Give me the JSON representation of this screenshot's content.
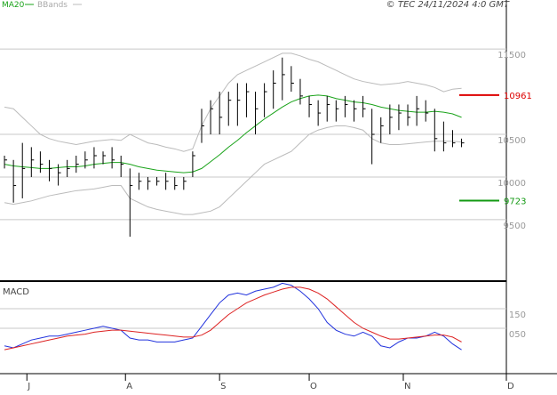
{
  "chart_data": [
    {
      "type": "ohlc",
      "footer": "© TEC 24/11/2024 4:0 GMT",
      "x": [
        0,
        2,
        4,
        6,
        8,
        10,
        12,
        14,
        16,
        18,
        20,
        22,
        24,
        26,
        28,
        30,
        32,
        34,
        36,
        38,
        40,
        42,
        44,
        46,
        48,
        50,
        52,
        54,
        56,
        58,
        60,
        62,
        64,
        66,
        68,
        70,
        72,
        74,
        76,
        78,
        80,
        82,
        84,
        86,
        88,
        90,
        92,
        94,
        96,
        98,
        100,
        102
      ],
      "high": [
        10250,
        10200,
        10400,
        10350,
        10300,
        10200,
        10150,
        10200,
        10250,
        10300,
        10350,
        10300,
        10350,
        10250,
        10100,
        10050,
        10000,
        10000,
        10050,
        10000,
        10000,
        10300,
        10800,
        10900,
        11000,
        11000,
        11100,
        11100,
        11000,
        11100,
        11250,
        11400,
        11300,
        11150,
        10950,
        10900,
        10950,
        10900,
        10950,
        10900,
        10950,
        10800,
        10700,
        10850,
        10850,
        10850,
        10950,
        10900,
        10800,
        10650,
        10550,
        10450
      ],
      "low": [
        10100,
        9700,
        9750,
        10000,
        10050,
        9950,
        9900,
        10000,
        10050,
        10100,
        10100,
        10150,
        10100,
        10000,
        9300,
        9850,
        9850,
        9900,
        9850,
        9850,
        9850,
        10000,
        10400,
        10500,
        10500,
        10600,
        10600,
        10700,
        10500,
        10700,
        10800,
        10900,
        11000,
        10850,
        10700,
        10600,
        10650,
        10650,
        10700,
        10650,
        10700,
        10150,
        10400,
        10500,
        10550,
        10600,
        10600,
        10650,
        10300,
        10300,
        10350,
        10350
      ],
      "close": [
        10200,
        9900,
        10100,
        10200,
        10150,
        10100,
        10050,
        10100,
        10150,
        10200,
        10250,
        10250,
        10200,
        10150,
        9900,
        9950,
        9950,
        9950,
        9950,
        9900,
        9950,
        10250,
        10600,
        10800,
        10700,
        10900,
        10900,
        11000,
        10800,
        11000,
        11100,
        11200,
        11100,
        10950,
        10850,
        10750,
        10850,
        10800,
        10850,
        10800,
        10800,
        10500,
        10600,
        10700,
        10750,
        10700,
        10800,
        10750,
        10450,
        10400,
        10400,
        10400
      ],
      "bar_color": "#000000",
      "series": [
        {
          "name": "MA20",
          "color": "#1aa31a",
          "values": [
            10150,
            10130,
            10120,
            10110,
            10100,
            10100,
            10110,
            10120,
            10120,
            10130,
            10150,
            10160,
            10170,
            10170,
            10150,
            10120,
            10100,
            10080,
            10070,
            10060,
            10050,
            10060,
            10100,
            10180,
            10260,
            10350,
            10430,
            10520,
            10600,
            10680,
            10750,
            10820,
            10880,
            10920,
            10950,
            10960,
            10950,
            10920,
            10900,
            10880,
            10870,
            10850,
            10820,
            10800,
            10780,
            10770,
            10760,
            10760,
            10770,
            10760,
            10740,
            10700
          ]
        },
        {
          "name": "BBands",
          "color": "#bbbbbb",
          "values": [
            10820,
            10800,
            10700,
            10600,
            10500,
            10450,
            10420,
            10400,
            10380,
            10400,
            10420,
            10430,
            10440,
            10430,
            10500,
            10450,
            10400,
            10380,
            10350,
            10330,
            10300,
            10330,
            10600,
            10800,
            10950,
            11100,
            11200,
            11250,
            11300,
            11350,
            11400,
            11450,
            11450,
            11420,
            11380,
            11350,
            11300,
            11250,
            11200,
            11150,
            11120,
            11100,
            11080,
            11090,
            11100,
            11120,
            11100,
            11080,
            11050,
            11000,
            11030,
            11040
          ],
          "lower": [
            9700,
            9680,
            9700,
            9720,
            9750,
            9780,
            9800,
            9820,
            9840,
            9850,
            9860,
            9880,
            9900,
            9900,
            9750,
            9700,
            9650,
            9620,
            9600,
            9580,
            9560,
            9560,
            9580,
            9600,
            9650,
            9750,
            9850,
            9950,
            10050,
            10150,
            10200,
            10250,
            10300,
            10400,
            10500,
            10550,
            10580,
            10600,
            10600,
            10580,
            10550,
            10450,
            10400,
            10380,
            10380,
            10390,
            10400,
            10410,
            10420,
            10420,
            10420,
            10410
          ]
        }
      ],
      "levels": [
        {
          "value": 10961,
          "color": "#dd0000"
        },
        {
          "value": 9723,
          "color": "#129912"
        }
      ],
      "xlim": [
        -1,
        112
      ],
      "ylim": [
        8790,
        12075
      ],
      "yticks": [
        9500,
        10000,
        10500,
        11500
      ],
      "grid": true
    },
    {
      "type": "line",
      "title": "MACD",
      "x": [
        0,
        2,
        4,
        6,
        8,
        10,
        12,
        14,
        16,
        18,
        20,
        22,
        24,
        26,
        28,
        30,
        32,
        34,
        36,
        38,
        40,
        42,
        44,
        46,
        48,
        50,
        52,
        54,
        56,
        58,
        60,
        62,
        64,
        66,
        68,
        70,
        72,
        74,
        76,
        78,
        80,
        82,
        84,
        86,
        88,
        90,
        92,
        94,
        96,
        98,
        100,
        102
      ],
      "series": [
        {
          "color": "#2233dd",
          "values": [
            -40,
            -50,
            -30,
            -10,
            0,
            10,
            10,
            20,
            30,
            40,
            50,
            60,
            50,
            40,
            0,
            -10,
            -10,
            -20,
            -20,
            -20,
            -10,
            0,
            60,
            120,
            180,
            220,
            230,
            220,
            240,
            250,
            260,
            280,
            270,
            240,
            200,
            150,
            80,
            40,
            20,
            10,
            30,
            10,
            -40,
            -50,
            -20,
            0,
            0,
            10,
            30,
            10,
            -30,
            -60
          ]
        },
        {
          "color": "#dd2222",
          "values": [
            -60,
            -50,
            -40,
            -30,
            -20,
            -10,
            0,
            10,
            15,
            20,
            30,
            35,
            40,
            40,
            35,
            30,
            25,
            20,
            15,
            10,
            5,
            5,
            15,
            40,
            80,
            120,
            150,
            180,
            200,
            220,
            235,
            250,
            260,
            260,
            250,
            230,
            200,
            160,
            120,
            80,
            50,
            30,
            10,
            -5,
            -5,
            0,
            5,
            10,
            15,
            15,
            5,
            -20
          ]
        }
      ],
      "xlim": [
        -1,
        112
      ],
      "ylim": [
        -173,
        282
      ],
      "yticks": [
        150,
        {
          "value": 50,
          "label": "050"
        }
      ],
      "grid": true,
      "xticks": [
        {
          "value": 5,
          "label": "J"
        },
        {
          "value": 27,
          "label": "A"
        },
        {
          "value": 48,
          "label": "S"
        },
        {
          "value": 68,
          "label": "O"
        },
        {
          "value": 89,
          "label": "N"
        },
        {
          "value": 112,
          "label": "D"
        }
      ]
    }
  ]
}
